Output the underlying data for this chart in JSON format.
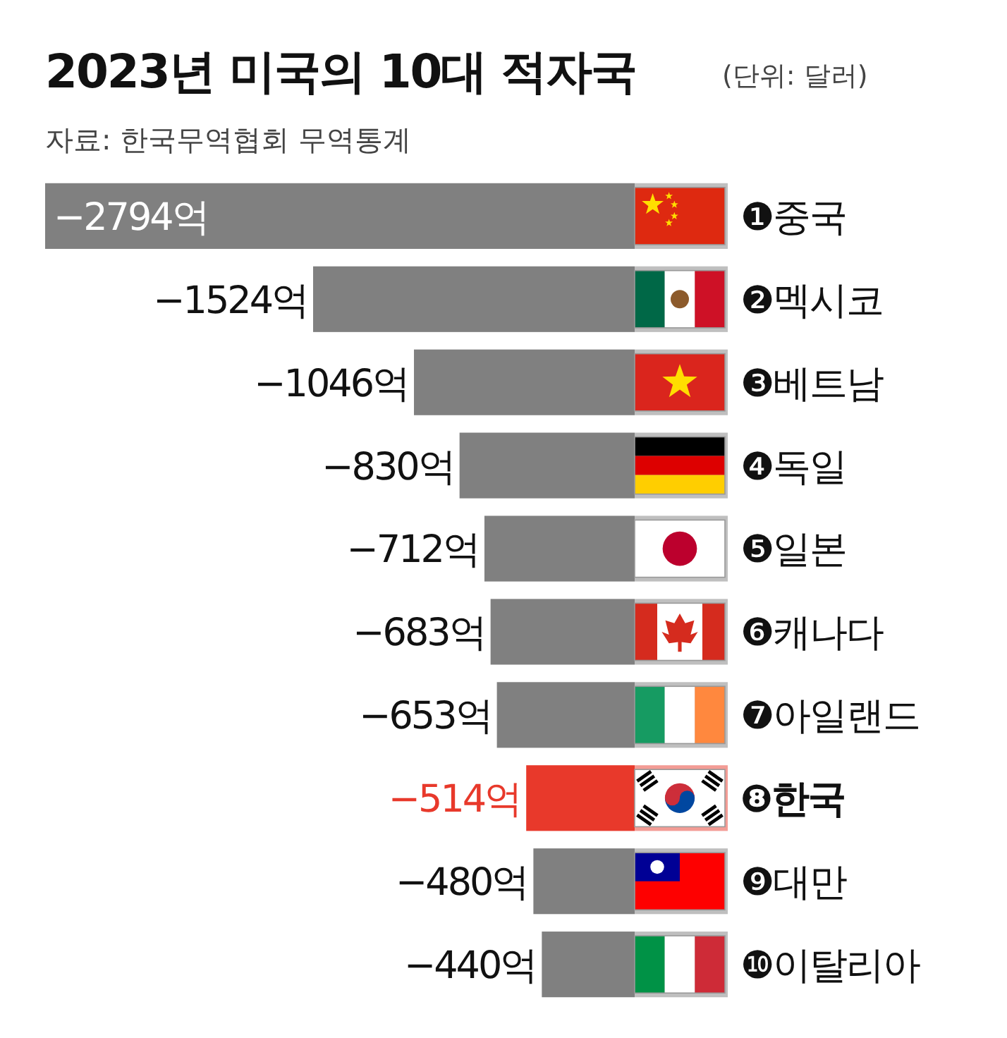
{
  "chart_data": {
    "type": "bar",
    "orientation": "horizontal",
    "title": "2023년 미국의 10대 적자국",
    "annotations": [
      "(단위: 달러)",
      "자료: 한국무역협회 무역통계"
    ],
    "categories": [
      "❶중국",
      "❷멕시코",
      "❸베트남",
      "❹독일",
      "❺일본",
      "❻캐나다",
      "❼아일랜드",
      "❽한국",
      "❾대만",
      "❿이탈리아"
    ],
    "values": [
      -2794,
      -1524,
      -1046,
      -830,
      -712,
      -683,
      -653,
      -514,
      -480,
      -440
    ],
    "value_labels": [
      "−2794억",
      "−1524억",
      "−1046억",
      "−830억",
      "−712억",
      "−683억",
      "−653억",
      "−514억",
      "−480억",
      "−440억"
    ],
    "color": "#808080",
    "colors": [
      "#808080",
      "#808080",
      "#808080",
      "#808080",
      "#808080",
      "#808080",
      "#808080",
      "#e8392b",
      "#808080",
      "#808080"
    ]
  }
}
